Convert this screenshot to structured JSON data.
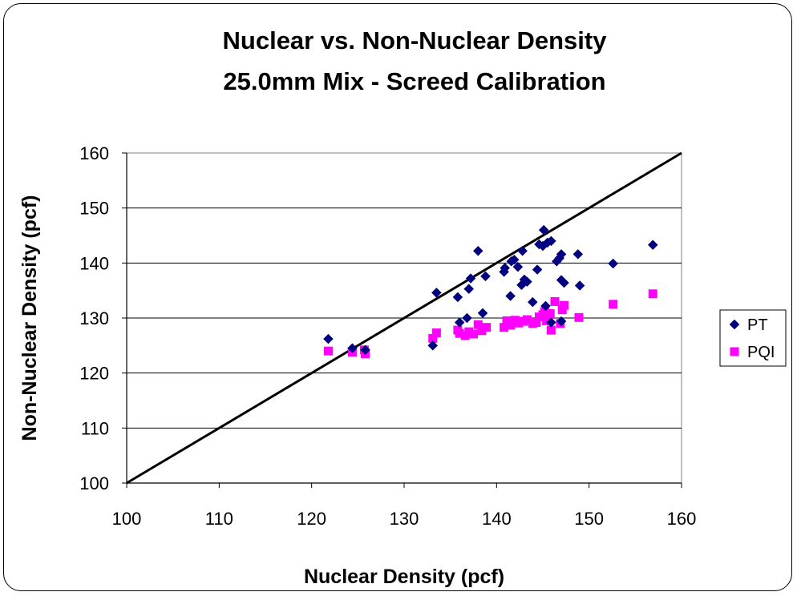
{
  "chart_data": {
    "type": "scatter",
    "title": [
      "Nuclear vs. Non-Nuclear Density",
      "25.0mm Mix - Screed Calibration"
    ],
    "xlabel": "Nuclear Density (pcf)",
    "ylabel": "Non-Nuclear Density (pcf)",
    "xlim": [
      100,
      160
    ],
    "ylim": [
      100,
      160
    ],
    "x_ticks": [
      "100",
      "110",
      "120",
      "130",
      "140",
      "150",
      "160"
    ],
    "y_ticks": [
      "100",
      "110",
      "120",
      "130",
      "140",
      "150",
      "160"
    ],
    "grid": {
      "horizontal": true,
      "vertical": false
    },
    "legend_position": "right",
    "reference_line": {
      "points": [
        [
          100,
          100
        ],
        [
          160,
          160
        ]
      ],
      "color": "#000000"
    },
    "series": [
      {
        "name": "PT",
        "marker": "diamond",
        "color": "#000080",
        "points": [
          [
            121.8,
            126.2
          ],
          [
            124.4,
            124.5
          ],
          [
            125.8,
            124.2
          ],
          [
            133.1,
            125.0
          ],
          [
            133.5,
            134.6
          ],
          [
            135.8,
            133.8
          ],
          [
            136.0,
            129.2
          ],
          [
            136.8,
            130.0
          ],
          [
            137.0,
            135.3
          ],
          [
            137.2,
            137.2
          ],
          [
            138.0,
            142.2
          ],
          [
            138.5,
            130.9
          ],
          [
            138.8,
            137.6
          ],
          [
            140.8,
            138.4
          ],
          [
            140.9,
            139.1
          ],
          [
            141.5,
            134.0
          ],
          [
            141.6,
            140.3
          ],
          [
            141.9,
            140.6
          ],
          [
            142.3,
            139.3
          ],
          [
            142.7,
            136.0
          ],
          [
            142.8,
            142.2
          ],
          [
            143.0,
            137.0
          ],
          [
            143.3,
            136.6
          ],
          [
            143.9,
            132.9
          ],
          [
            144.4,
            138.8
          ],
          [
            144.6,
            143.4
          ],
          [
            145.0,
            143.1
          ],
          [
            145.1,
            146.0
          ],
          [
            145.3,
            132.2
          ],
          [
            145.5,
            143.7
          ],
          [
            145.9,
            144.0
          ],
          [
            145.9,
            129.2
          ],
          [
            146.5,
            140.3
          ],
          [
            146.8,
            140.9
          ],
          [
            147.0,
            141.6
          ],
          [
            147.0,
            136.9
          ],
          [
            147.3,
            136.4
          ],
          [
            147.0,
            129.4
          ],
          [
            148.8,
            141.6
          ],
          [
            149.0,
            135.9
          ],
          [
            152.6,
            139.9
          ],
          [
            156.9,
            143.3
          ]
        ]
      },
      {
        "name": "PQI",
        "marker": "square",
        "color": "#FF00FF",
        "points": [
          [
            121.8,
            124.0
          ],
          [
            124.4,
            123.8
          ],
          [
            125.7,
            124.2
          ],
          [
            125.8,
            123.5
          ],
          [
            133.1,
            126.3
          ],
          [
            133.5,
            127.3
          ],
          [
            135.8,
            127.8
          ],
          [
            136.0,
            127.2
          ],
          [
            136.6,
            126.8
          ],
          [
            137.0,
            127.5
          ],
          [
            137.5,
            127.1
          ],
          [
            138.0,
            128.8
          ],
          [
            138.4,
            127.7
          ],
          [
            138.9,
            128.3
          ],
          [
            140.8,
            128.3
          ],
          [
            141.1,
            129.5
          ],
          [
            141.5,
            128.7
          ],
          [
            142.0,
            129.6
          ],
          [
            142.4,
            129.1
          ],
          [
            142.9,
            129.4
          ],
          [
            143.3,
            129.7
          ],
          [
            143.9,
            129.0
          ],
          [
            144.3,
            129.2
          ],
          [
            144.6,
            130.2
          ],
          [
            145.0,
            130.6
          ],
          [
            145.2,
            131.2
          ],
          [
            145.4,
            129.5
          ],
          [
            145.8,
            130.8
          ],
          [
            145.9,
            127.8
          ],
          [
            146.3,
            133.0
          ],
          [
            146.9,
            129.0
          ],
          [
            147.1,
            131.5
          ],
          [
            147.3,
            132.3
          ],
          [
            148.9,
            130.1
          ],
          [
            152.6,
            132.5
          ],
          [
            156.9,
            134.4
          ]
        ]
      }
    ]
  }
}
